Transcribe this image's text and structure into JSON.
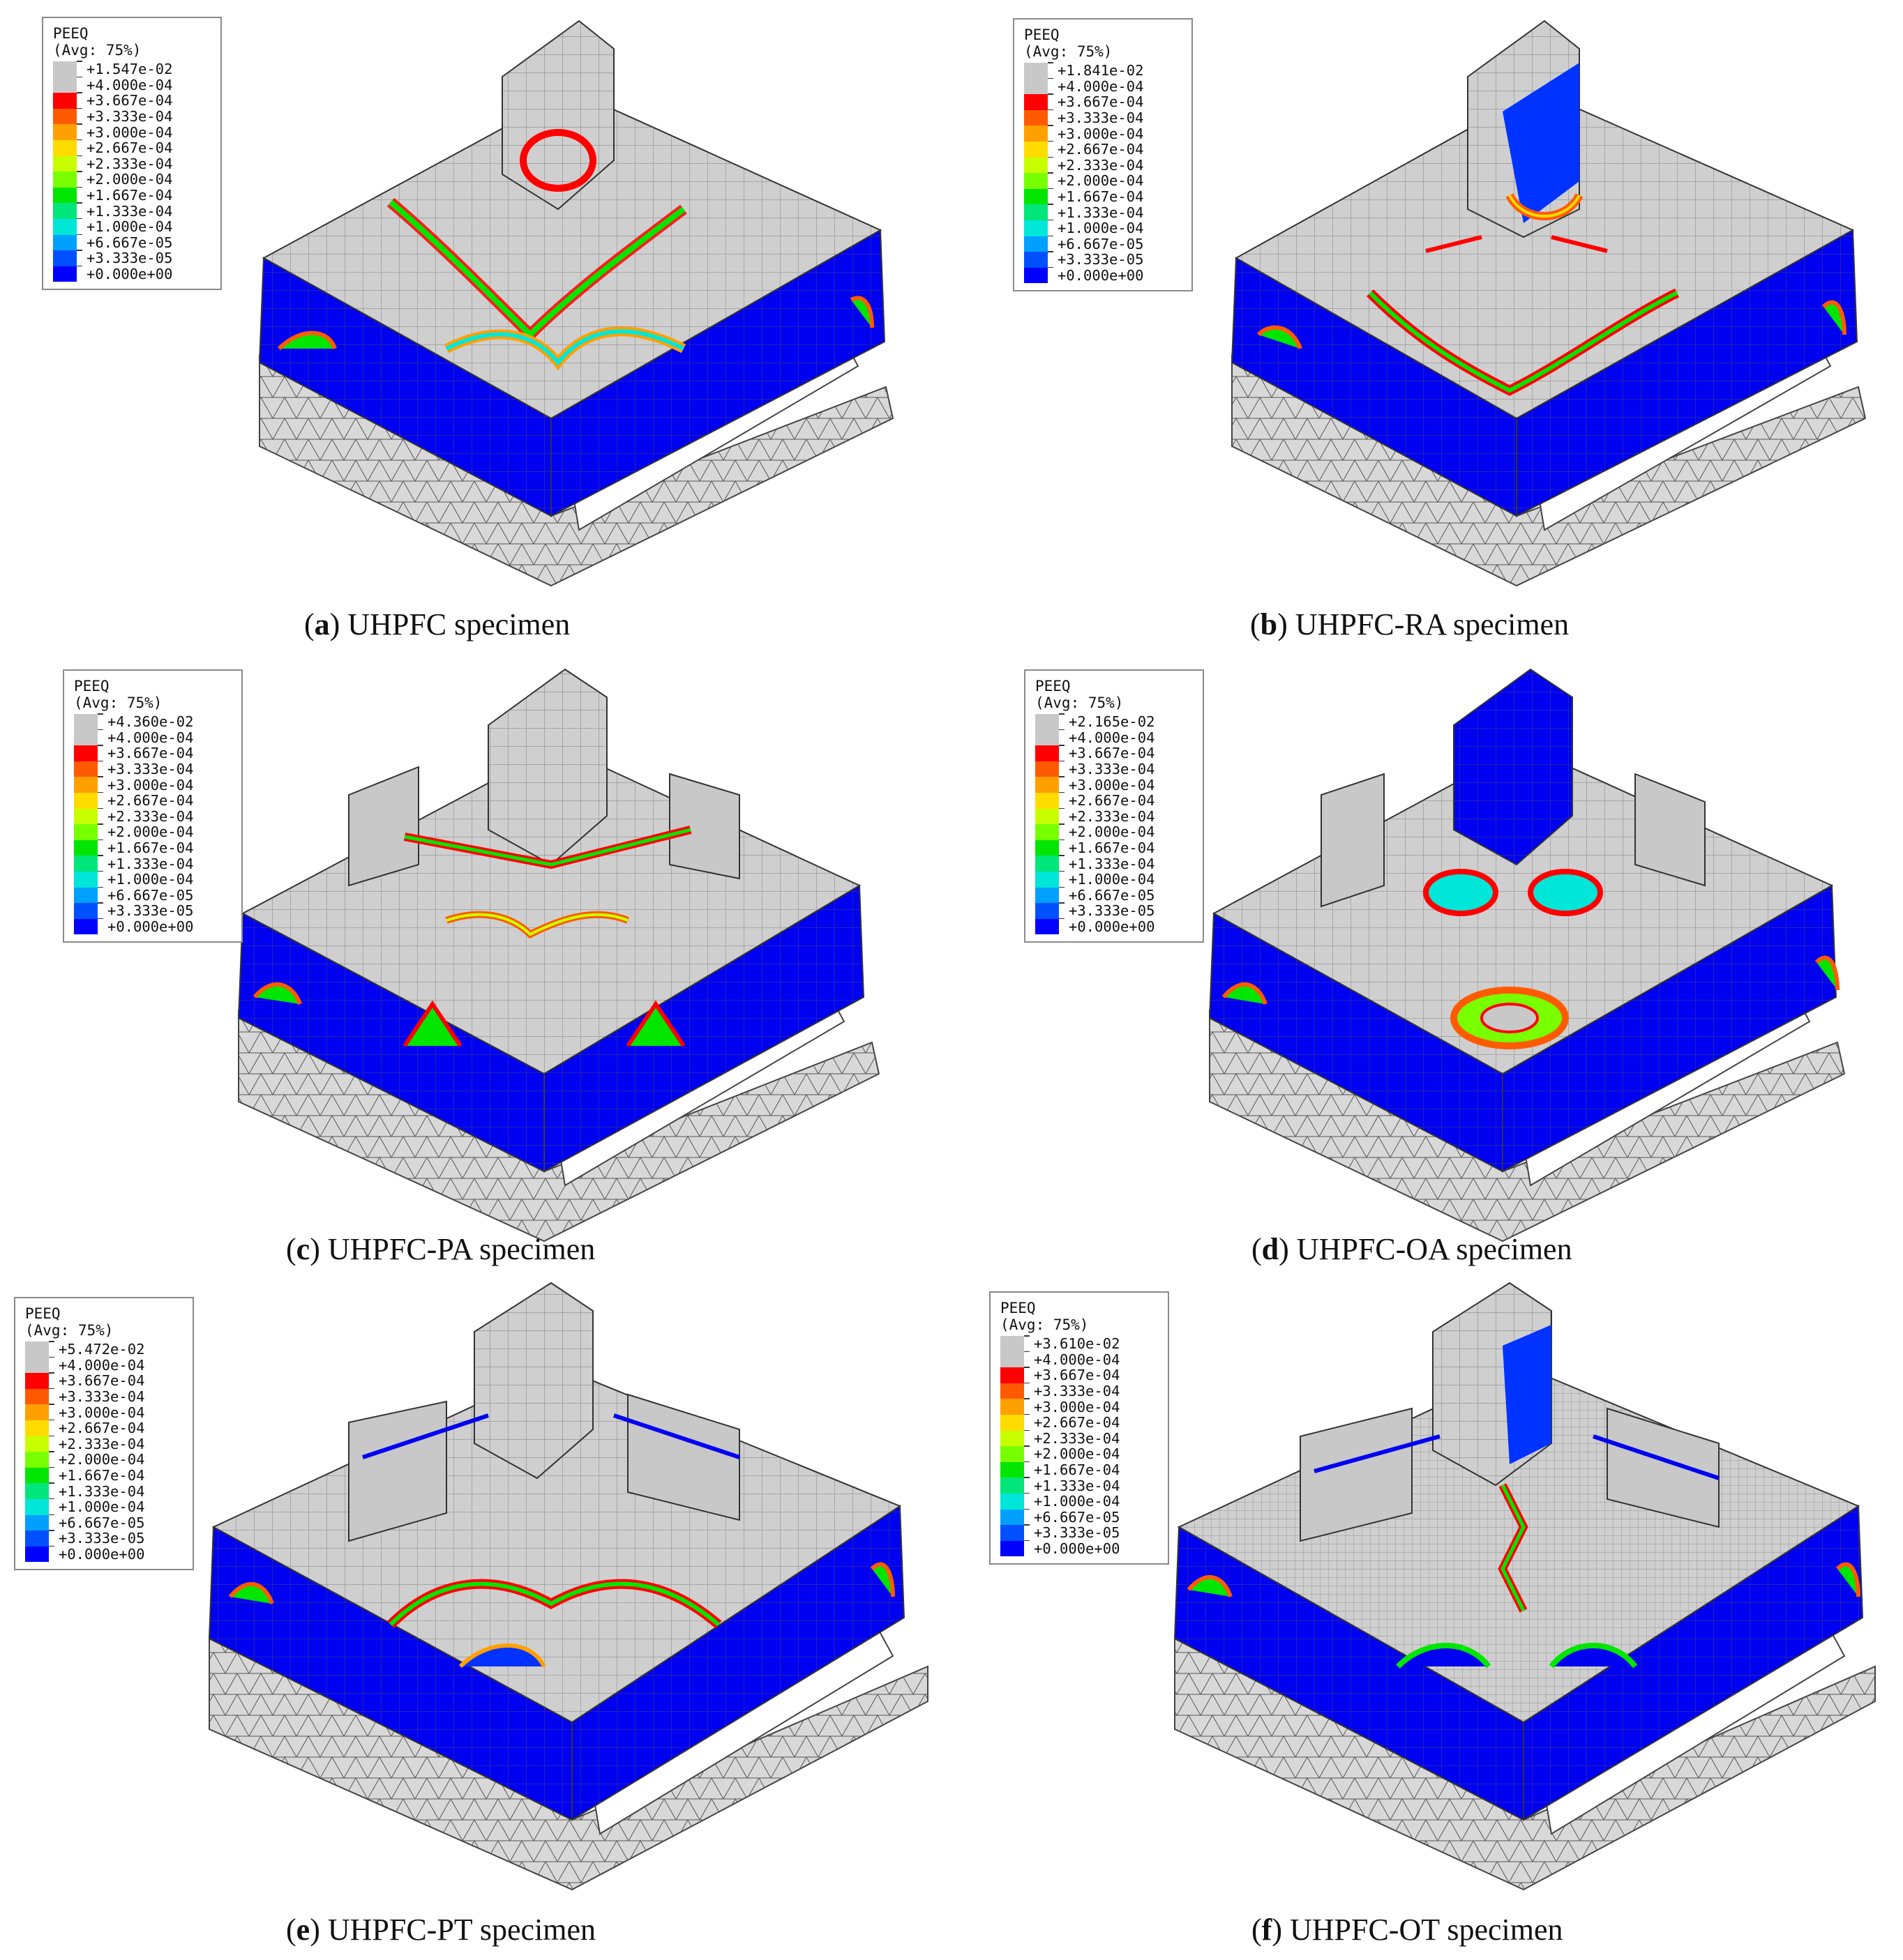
{
  "legend_common": {
    "title": "PEEQ",
    "subtitle": "(Avg: 75%)",
    "values": [
      "+4.000e-04",
      "+3.667e-04",
      "+3.333e-04",
      "+3.000e-04",
      "+2.667e-04",
      "+2.333e-04",
      "+2.000e-04",
      "+1.667e-04",
      "+1.333e-04",
      "+1.000e-04",
      "+6.667e-05",
      "+3.333e-05",
      "+0.000e+00"
    ],
    "colors": [
      "#c8c8c8",
      "#ff0000",
      "#ff5a00",
      "#ffa000",
      "#ffdc00",
      "#c8ff00",
      "#78ff00",
      "#00e600",
      "#00e67a",
      "#00e6d8",
      "#00a0ff",
      "#0050ff",
      "#0000ff"
    ]
  },
  "panels": [
    {
      "letter": "a",
      "caption_rest": ") UHPFC specimen",
      "legend_max": "+1.547e-02"
    },
    {
      "letter": "b",
      "caption_rest": ") UHPFC-RA specimen",
      "legend_max": "+1.841e-02"
    },
    {
      "letter": "c",
      "caption_rest": ") UHPFC-PA specimen",
      "legend_max": "+4.360e-02"
    },
    {
      "letter": "d",
      "caption_rest": ") UHPFC-OA specimen",
      "legend_max": "+2.165e-02"
    },
    {
      "letter": "e",
      "caption_rest": ") UHPFC-PT specimen",
      "legend_max": "+5.472e-02"
    },
    {
      "letter": "f",
      "caption_rest": ") UHPFC-OT specimen",
      "legend_max": "+3.610e-02"
    }
  ]
}
